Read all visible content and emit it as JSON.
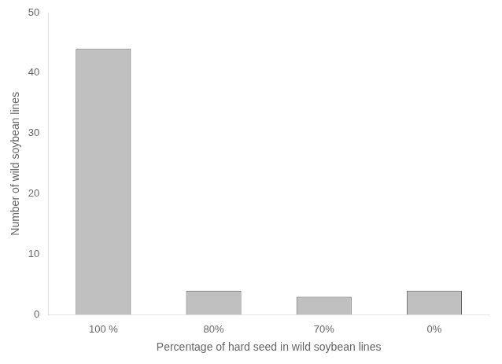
{
  "chart_data": {
    "type": "bar",
    "categories": [
      "100 %",
      "80%",
      "70%",
      "0%"
    ],
    "values": [
      44,
      4,
      3,
      4
    ],
    "color": "#C0C0C0",
    "xlabel": "Percentage of hard seed in wild soybean lines",
    "ylabel": "Number of wild soybean lines",
    "ylim": [
      0,
      50
    ],
    "yticks": [
      0,
      10,
      20,
      30,
      40,
      50
    ],
    "grid": false
  }
}
